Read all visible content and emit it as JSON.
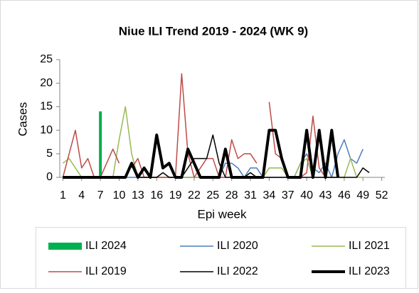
{
  "chart_data": {
    "type": "combo",
    "title": "Niue ILI Trend 2019 - 2024 (WK 9)",
    "x_label": "Epi week",
    "y_label": "Cases",
    "x": [
      1,
      2,
      3,
      4,
      5,
      6,
      7,
      8,
      9,
      10,
      11,
      12,
      13,
      14,
      15,
      16,
      17,
      18,
      19,
      20,
      21,
      22,
      23,
      24,
      25,
      26,
      27,
      28,
      29,
      30,
      31,
      32,
      33,
      34,
      35,
      36,
      37,
      38,
      39,
      40,
      41,
      42,
      43,
      44,
      45,
      46,
      47,
      48,
      49,
      50,
      51,
      52
    ],
    "xlim": [
      0.5,
      52.5
    ],
    "xticks": [
      1,
      4,
      7,
      10,
      13,
      16,
      19,
      22,
      25,
      28,
      31,
      34,
      37,
      40,
      43,
      46,
      49,
      52
    ],
    "ylim": [
      0,
      25
    ],
    "yticks": [
      0,
      5,
      10,
      15,
      20,
      25
    ],
    "series": [
      {
        "name": "ILI 2024",
        "type": "bar",
        "color": "#00b050",
        "width": 0,
        "values": [
          null,
          null,
          null,
          null,
          null,
          null,
          14,
          0,
          0,
          null,
          null,
          null,
          null,
          null,
          null,
          null,
          null,
          null,
          null,
          null,
          null,
          null,
          null,
          null,
          null,
          null,
          null,
          null,
          null,
          null,
          null,
          null,
          null,
          null,
          null,
          null,
          null,
          null,
          null,
          null,
          null,
          null,
          null,
          null,
          null,
          null,
          null,
          null,
          null,
          null,
          null,
          null
        ]
      },
      {
        "name": "ILI 2020",
        "type": "line",
        "color": "#4a7ebb",
        "width": 1.5,
        "values": [
          0,
          0,
          0,
          0,
          0,
          0,
          0,
          0,
          0,
          0,
          0,
          0,
          0,
          0,
          0,
          0,
          0,
          0,
          0,
          0,
          0,
          0,
          0,
          0,
          0,
          0,
          3,
          3,
          2,
          0,
          2,
          2,
          0,
          0,
          0,
          0,
          0,
          0,
          3,
          5,
          2,
          1,
          3,
          0,
          5,
          8,
          4,
          3,
          6,
          null,
          null,
          null
        ]
      },
      {
        "name": "ILI 2021",
        "type": "line",
        "color": "#98b954",
        "width": 1.5,
        "values": [
          3,
          4,
          2,
          0,
          null,
          null,
          null,
          null,
          0,
          8,
          15,
          5,
          0,
          0,
          0,
          0,
          0,
          0,
          0,
          0,
          0,
          0,
          0,
          0,
          0,
          0,
          0,
          0,
          0,
          0,
          0,
          0,
          0,
          2,
          2,
          2,
          0,
          0,
          3,
          4,
          0,
          0,
          0,
          0,
          0,
          0,
          4,
          0,
          0,
          null,
          null,
          null
        ]
      },
      {
        "name": "ILI 2019",
        "type": "line",
        "color": "#be4b48",
        "width": 1.5,
        "values": [
          0,
          5,
          10,
          2,
          4,
          0,
          0,
          3,
          6,
          3,
          null,
          2,
          4,
          0,
          0,
          0,
          0,
          0,
          0,
          22,
          5,
          0,
          2,
          4,
          4,
          0,
          0,
          8,
          4,
          5,
          5,
          3,
          null,
          16,
          5,
          4,
          0,
          0,
          0,
          1,
          13,
          2,
          0,
          0,
          0,
          null,
          null,
          null,
          null,
          null,
          null,
          null
        ]
      },
      {
        "name": "ILI 2022",
        "type": "line",
        "color": "#000000",
        "width": 1.5,
        "values": [
          0,
          0,
          0,
          0,
          0,
          0,
          0,
          0,
          0,
          0,
          0,
          3,
          0,
          0,
          0,
          0,
          1,
          0,
          0,
          0,
          2,
          4,
          4,
          4,
          9,
          3,
          0,
          0,
          0,
          0,
          1,
          0,
          0,
          0,
          0,
          0,
          0,
          0,
          0,
          0,
          0,
          0,
          0,
          0,
          0,
          0,
          0,
          0,
          2,
          1,
          null,
          null
        ]
      },
      {
        "name": "ILI 2023",
        "type": "line",
        "color": "#000000",
        "width": 4,
        "values": [
          0,
          0,
          0,
          0,
          0,
          0,
          0,
          0,
          0,
          0,
          0,
          3,
          0,
          2,
          0,
          9,
          2,
          3,
          0,
          0,
          6,
          3,
          0,
          0,
          0,
          0,
          6,
          0,
          0,
          0,
          0,
          0,
          0,
          10,
          10,
          4,
          0,
          0,
          0,
          10,
          0,
          10,
          0,
          10,
          0,
          null,
          null,
          null,
          null,
          null,
          null,
          null
        ]
      }
    ]
  }
}
